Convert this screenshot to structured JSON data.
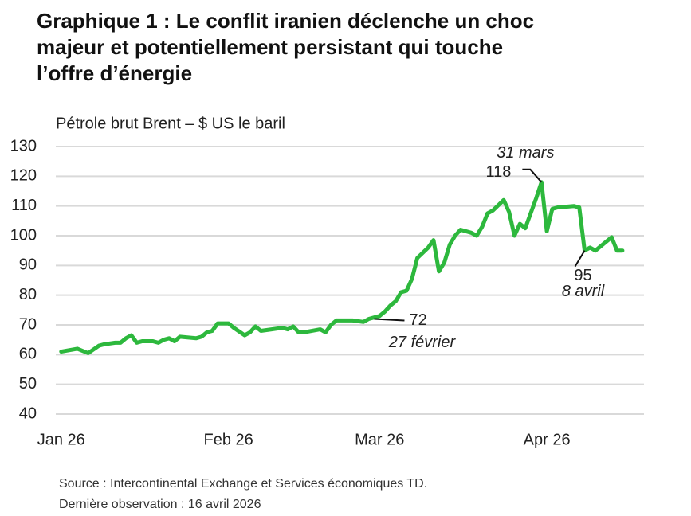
{
  "chart_data": {
    "type": "line",
    "title": "Graphique 1 : Le conflit iranien déclenche un choc majeur et potentiellement persistant qui touche l’offre d’énergie",
    "subtitle": "Pétrole brut Brent – $ US le baril",
    "color": "#2db83d",
    "x": [
      0,
      3,
      5,
      7,
      8,
      10,
      11,
      12,
      13,
      14,
      15,
      17,
      18,
      19,
      20,
      21,
      22,
      25,
      26,
      27,
      28,
      29,
      31,
      32,
      34,
      35,
      36,
      37,
      39,
      41,
      42,
      43,
      44,
      45,
      48,
      49,
      50,
      51,
      54,
      56,
      57,
      59,
      60,
      61,
      62,
      63,
      64,
      65,
      66,
      68,
      69,
      70,
      71,
      72,
      73,
      74,
      76,
      77,
      78,
      79,
      80,
      82,
      83,
      84,
      85,
      86,
      88,
      89,
      90,
      91,
      92,
      95,
      96,
      97,
      98,
      99,
      102,
      103,
      104
    ],
    "values": [
      61,
      62,
      60.5,
      63,
      63.5,
      64,
      64,
      65.5,
      66.5,
      64,
      64.5,
      64.5,
      64,
      65,
      65.5,
      64.5,
      66,
      65.5,
      66,
      67.5,
      68,
      70.5,
      70.5,
      69,
      66.5,
      67.5,
      69.5,
      68,
      68.5,
      69,
      68.5,
      69.5,
      67.5,
      67.5,
      68.5,
      67.5,
      70,
      71.5,
      71.5,
      71,
      72,
      73,
      74.5,
      76.5,
      78,
      81,
      81.5,
      85.5,
      92.5,
      96,
      98.5,
      88,
      91,
      97,
      100,
      102,
      101,
      100,
      103,
      107.5,
      108.5,
      112,
      108,
      100,
      104,
      102.5,
      112.5,
      118,
      101.5,
      109,
      109.5,
      110,
      109.5,
      95,
      96,
      95,
      99.5,
      95,
      95
    ],
    "xlim": [
      -1,
      108
    ],
    "xticks": [
      {
        "value": 0,
        "label": "Jan 26"
      },
      {
        "value": 31,
        "label": "Feb 26"
      },
      {
        "value": 59,
        "label": "Mar 26"
      },
      {
        "value": 90,
        "label": "Apr 26"
      }
    ],
    "ylim": [
      40,
      130
    ],
    "yticks": [
      40,
      50,
      60,
      70,
      80,
      90,
      100,
      110,
      120,
      130
    ],
    "grid": true,
    "annotations": [
      {
        "x": 58,
        "value": 72,
        "date": "27 février"
      },
      {
        "x": 89,
        "value": 118,
        "date": "31 mars"
      },
      {
        "x": 97,
        "value": 95,
        "date": "8 avril"
      }
    ],
    "source": [
      "Source : Intercontinental Exchange et Services économiques TD.",
      "Dernière observation : 16 avril 2026"
    ]
  }
}
